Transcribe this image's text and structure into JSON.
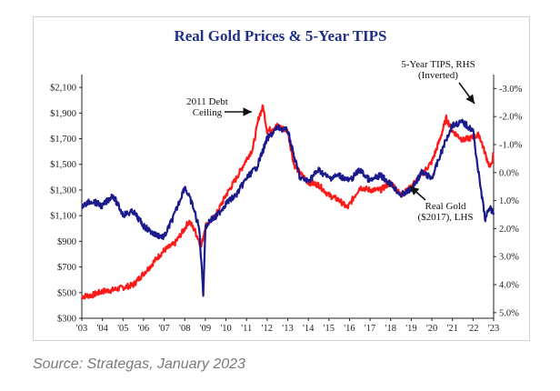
{
  "chart_data": {
    "type": "line",
    "title": "Real Gold Prices & 5-Year TIPS",
    "x_tick_labels": [
      "'03",
      "'04",
      "'05",
      "'06",
      "'07",
      "'08",
      "'09",
      "'10",
      "'11",
      "'12",
      "'13",
      "'14",
      "'15",
      "'16",
      "'17",
      "'18",
      "'19",
      "'20",
      "'21",
      "'22",
      "'23"
    ],
    "xlim": [
      2003,
      2023
    ],
    "left_axis": {
      "tick_labels": [
        "$300",
        "$500",
        "$700",
        "$900",
        "$1,100",
        "$1,300",
        "$1,500",
        "$1,700",
        "$1,900",
        "$2,100"
      ],
      "ticks": [
        300,
        500,
        700,
        900,
        1100,
        1300,
        1500,
        1700,
        1900,
        2100
      ],
      "ylim": [
        300,
        2200
      ]
    },
    "right_axis": {
      "tick_labels": [
        "-3.0%",
        "-2.0%",
        "-1.0%",
        "0.0%",
        "1.0%",
        "2.0%",
        "3.0%",
        "4.0%",
        "5.0%"
      ],
      "ticks": [
        -3,
        -2,
        -1,
        0,
        1,
        2,
        3,
        4,
        5
      ],
      "ylim": [
        -3.5,
        5.2
      ],
      "inverted": true
    },
    "series": [
      {
        "name": "Real Gold ($2017), LHS",
        "axis": "left",
        "color": "#ff1a1a",
        "x": [
          2003.0,
          2003.5,
          2004.0,
          2004.5,
          2005.0,
          2005.5,
          2006.0,
          2006.3,
          2006.6,
          2007.0,
          2007.5,
          2008.0,
          2008.2,
          2008.5,
          2008.8,
          2009.0,
          2009.5,
          2010.0,
          2010.5,
          2011.0,
          2011.3,
          2011.6,
          2011.8,
          2012.0,
          2012.5,
          2013.0,
          2013.3,
          2013.6,
          2014.0,
          2014.5,
          2015.0,
          2015.5,
          2015.9,
          2016.5,
          2017.0,
          2017.5,
          2018.0,
          2018.5,
          2018.9,
          2019.5,
          2020.0,
          2020.4,
          2020.7,
          2021.0,
          2021.5,
          2022.0,
          2022.3,
          2022.7,
          2022.85,
          2023.0
        ],
        "y": [
          470,
          480,
          510,
          520,
          540,
          560,
          650,
          700,
          760,
          830,
          880,
          1000,
          1060,
          980,
          860,
          1020,
          1100,
          1260,
          1390,
          1540,
          1620,
          1870,
          1950,
          1760,
          1800,
          1760,
          1500,
          1430,
          1360,
          1340,
          1260,
          1220,
          1160,
          1320,
          1300,
          1300,
          1360,
          1260,
          1310,
          1420,
          1520,
          1700,
          1860,
          1760,
          1690,
          1710,
          1730,
          1530,
          1470,
          1590
        ]
      },
      {
        "name": "5-Year TIPS, RHS (Inverted)",
        "axis": "right",
        "color": "#1a1a8c",
        "x": [
          2003.0,
          2003.5,
          2004.0,
          2004.5,
          2005.0,
          2005.5,
          2006.0,
          2006.5,
          2007.0,
          2007.5,
          2008.0,
          2008.4,
          2008.7,
          2008.9,
          2009.0,
          2009.2,
          2009.5,
          2010.0,
          2010.5,
          2011.0,
          2011.5,
          2011.8,
          2012.0,
          2012.5,
          2013.0,
          2013.3,
          2013.6,
          2014.0,
          2014.5,
          2015.0,
          2015.5,
          2016.0,
          2016.5,
          2017.0,
          2017.5,
          2018.0,
          2018.5,
          2019.0,
          2019.5,
          2020.0,
          2020.3,
          2020.7,
          2021.0,
          2021.5,
          2022.0,
          2022.3,
          2022.6,
          2022.8,
          2023.0
        ],
        "y": [
          1.2,
          1.0,
          1.2,
          0.8,
          1.5,
          1.4,
          1.9,
          2.2,
          2.3,
          1.5,
          0.5,
          1.2,
          2.0,
          4.3,
          2.0,
          1.7,
          1.6,
          1.1,
          0.8,
          0.2,
          -0.2,
          -0.8,
          -1.2,
          -1.6,
          -1.5,
          -0.6,
          0.2,
          0.3,
          -0.1,
          0.2,
          0.1,
          0.3,
          -0.1,
          0.3,
          0.1,
          0.4,
          0.8,
          0.6,
          0.0,
          0.2,
          -0.4,
          -1.2,
          -1.7,
          -1.8,
          -1.5,
          0.2,
          1.7,
          1.2,
          1.5
        ]
      }
    ],
    "annotations": [
      {
        "lines": [
          "2011 Debt",
          "Ceiling"
        ]
      },
      {
        "lines": [
          "5-Year TIPS, RHS",
          "(Inverted)"
        ]
      },
      {
        "lines": [
          "Real Gold",
          "($2017), LHS"
        ]
      }
    ]
  },
  "source": "Source: Strategas, January 2023"
}
